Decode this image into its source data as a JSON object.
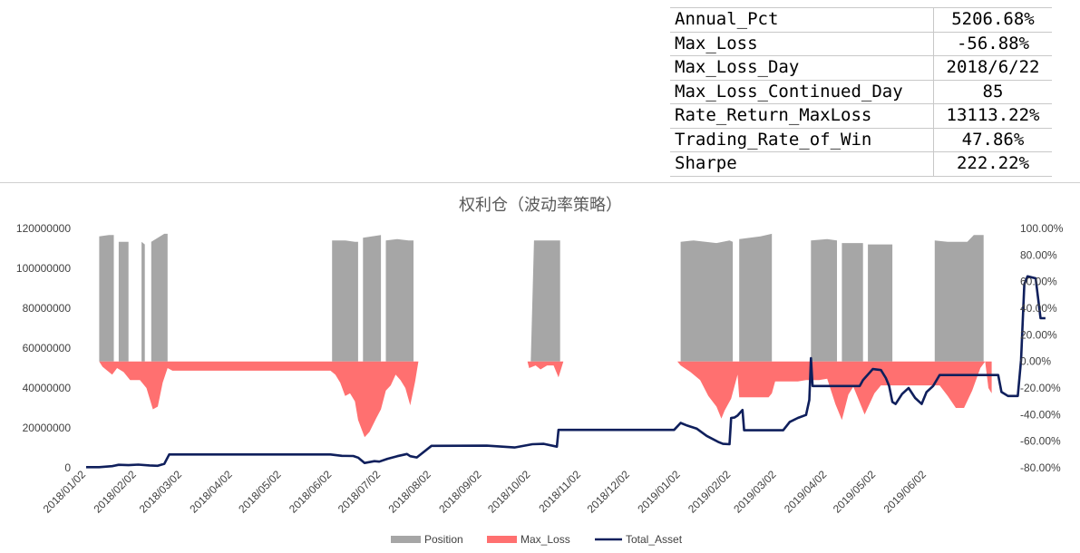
{
  "stats": [
    {
      "key": "Annual_Pct",
      "value": "5206.68%"
    },
    {
      "key": "Max_Loss",
      "value": "-56.88%"
    },
    {
      "key": "Max_Loss_Day",
      "value": "2018/6/22"
    },
    {
      "key": "Max_Loss_Continued_Day",
      "value": "85"
    },
    {
      "key": "Rate_Return_MaxLoss",
      "value": "13113.22%"
    },
    {
      "key": "Trading_Rate_of_Win",
      "value": "47.86%"
    },
    {
      "key": "Sharpe",
      "value": "222.22%"
    }
  ],
  "chart_data": {
    "type": "area",
    "title": "权利仓（波动率策略）",
    "x_axis": {
      "type": "date",
      "range": [
        "2018-01-02",
        "2019-07-20"
      ],
      "tick_labels": [
        "2018/01/02",
        "2018/02/02",
        "2018/03/02",
        "2018/04/02",
        "2018/05/02",
        "2018/06/02",
        "2018/07/02",
        "2018/08/02",
        "2018/09/02",
        "2018/10/02",
        "2018/11/02",
        "2018/12/02",
        "2019/01/02",
        "2019/02/02",
        "2019/03/02",
        "2019/04/02",
        "2019/05/02",
        "2019/06/02"
      ]
    },
    "y_left": {
      "range": [
        0,
        120000000
      ],
      "tick_labels": [
        "0",
        "20000000",
        "40000000",
        "60000000",
        "80000000",
        "100000000",
        "120000000"
      ]
    },
    "y_right": {
      "range": [
        -80,
        100
      ],
      "unit": "%",
      "tick_labels": [
        "-80.00%",
        "-60.00%",
        "-40.00%",
        "-20.00%",
        "0.00%",
        "20.00%",
        "40.00%",
        "60.00%",
        "80.00%",
        "100.00%"
      ]
    },
    "legend": {
      "position": "bottom",
      "entries": [
        "Position",
        "Max_Loss",
        "Total_Asset"
      ]
    },
    "colors": {
      "Position": "#a6a6a6",
      "Max_Loss": "#ff7070",
      "Total_Asset": "#0f1f5c"
    },
    "series": [
      {
        "name": "Position",
        "axis": "right",
        "kind": "area",
        "segments": [
          [
            [
              "2018-01-10",
              0
            ],
            [
              "2018-01-10",
              94
            ],
            [
              "2018-01-16",
              95
            ],
            [
              "2018-01-19",
              95
            ],
            [
              "2018-01-19",
              0
            ]
          ],
          [
            [
              "2018-01-22",
              0
            ],
            [
              "2018-01-22",
              90
            ],
            [
              "2018-01-28",
              90
            ],
            [
              "2018-01-28",
              0
            ]
          ],
          [
            [
              "2018-02-05",
              0
            ],
            [
              "2018-02-05",
              90
            ],
            [
              "2018-02-07",
              88
            ],
            [
              "2018-02-07",
              0
            ]
          ],
          [
            [
              "2018-02-11",
              0
            ],
            [
              "2018-02-11",
              90
            ],
            [
              "2018-02-19",
              96
            ],
            [
              "2018-02-21",
              96
            ],
            [
              "2018-02-21",
              0
            ]
          ],
          [
            [
              "2018-06-02",
              0
            ],
            [
              "2018-06-02",
              91
            ],
            [
              "2018-06-10",
              91
            ],
            [
              "2018-06-16",
              90
            ],
            [
              "2018-06-18",
              90
            ],
            [
              "2018-06-18",
              0
            ]
          ],
          [
            [
              "2018-06-21",
              0
            ],
            [
              "2018-06-21",
              93
            ],
            [
              "2018-07-02",
              95
            ],
            [
              "2018-07-02",
              0
            ]
          ],
          [
            [
              "2018-07-05",
              0
            ],
            [
              "2018-07-05",
              91
            ],
            [
              "2018-07-12",
              92
            ],
            [
              "2018-07-19",
              91
            ],
            [
              "2018-07-22",
              91
            ],
            [
              "2018-07-22",
              0
            ]
          ],
          [
            [
              "2018-10-02",
              0
            ],
            [
              "2018-10-04",
              91
            ],
            [
              "2018-10-20",
              91
            ],
            [
              "2018-10-20",
              0
            ]
          ],
          [
            [
              "2019-01-02",
              0
            ],
            [
              "2019-01-02",
              90
            ],
            [
              "2019-01-10",
              91
            ],
            [
              "2019-01-24",
              89
            ],
            [
              "2019-02-01",
              91
            ],
            [
              "2019-02-03",
              90
            ],
            [
              "2019-02-03",
              0
            ]
          ],
          [
            [
              "2019-02-07",
              0
            ],
            [
              "2019-02-07",
              92
            ],
            [
              "2019-02-20",
              94
            ],
            [
              "2019-02-27",
              96
            ],
            [
              "2019-02-27",
              0
            ]
          ],
          [
            [
              "2019-03-23",
              0
            ],
            [
              "2019-03-23",
              91
            ],
            [
              "2019-04-02",
              92
            ],
            [
              "2019-04-08",
              91
            ],
            [
              "2019-04-08",
              0
            ]
          ],
          [
            [
              "2019-04-11",
              0
            ],
            [
              "2019-04-11",
              89
            ],
            [
              "2019-04-24",
              89
            ],
            [
              "2019-04-24",
              0
            ]
          ],
          [
            [
              "2019-04-27",
              0
            ],
            [
              "2019-04-27",
              88
            ],
            [
              "2019-05-12",
              88
            ],
            [
              "2019-05-12",
              0
            ]
          ],
          [
            [
              "2019-06-07",
              0
            ],
            [
              "2019-06-07",
              91
            ],
            [
              "2019-06-15",
              90
            ],
            [
              "2019-06-27",
              90
            ],
            [
              "2019-07-01",
              95
            ],
            [
              "2019-07-07",
              95
            ],
            [
              "2019-07-07",
              0
            ]
          ]
        ]
      },
      {
        "name": "Max_Loss",
        "axis": "right",
        "kind": "area",
        "points": [
          [
            "2018-01-10",
            0
          ],
          [
            "2018-01-12",
            -4
          ],
          [
            "2018-01-15",
            -7
          ],
          [
            "2018-01-18",
            -10
          ],
          [
            "2018-01-21",
            -5
          ],
          [
            "2018-01-25",
            -8
          ],
          [
            "2018-01-29",
            -14
          ],
          [
            "2018-02-04",
            -14
          ],
          [
            "2018-02-08",
            -20
          ],
          [
            "2018-02-12",
            -36
          ],
          [
            "2018-02-15",
            -34
          ],
          [
            "2018-02-18",
            -16
          ],
          [
            "2018-02-21",
            -5
          ],
          [
            "2018-02-24",
            -7
          ],
          [
            "2018-06-01",
            -7
          ],
          [
            "2018-06-04",
            -10
          ],
          [
            "2018-06-07",
            -16
          ],
          [
            "2018-06-10",
            -26
          ],
          [
            "2018-06-13",
            -24
          ],
          [
            "2018-06-16",
            -30
          ],
          [
            "2018-06-18",
            -44
          ],
          [
            "2018-06-22",
            -57
          ],
          [
            "2018-06-25",
            -53
          ],
          [
            "2018-06-29",
            -43
          ],
          [
            "2018-07-02",
            -36
          ],
          [
            "2018-07-05",
            -22
          ],
          [
            "2018-07-08",
            -18
          ],
          [
            "2018-07-11",
            -10
          ],
          [
            "2018-07-14",
            -14
          ],
          [
            "2018-07-17",
            -20
          ],
          [
            "2018-07-20",
            -33
          ],
          [
            "2018-07-23",
            -15
          ],
          [
            "2018-07-25",
            0
          ],
          [
            "2018-09-30",
            0
          ],
          [
            "2018-10-01",
            -5
          ],
          [
            "2018-10-05",
            -3
          ],
          [
            "2018-10-08",
            -6
          ],
          [
            "2018-10-12",
            -3
          ],
          [
            "2018-10-16",
            -3
          ],
          [
            "2018-10-19",
            -12
          ],
          [
            "2018-10-22",
            0
          ],
          [
            "2018-12-31",
            0
          ],
          [
            "2019-01-02",
            -3
          ],
          [
            "2019-01-08",
            -8
          ],
          [
            "2019-01-14",
            -14
          ],
          [
            "2019-01-19",
            -26
          ],
          [
            "2019-01-24",
            -34
          ],
          [
            "2019-01-27",
            -43
          ],
          [
            "2019-01-29",
            -37
          ],
          [
            "2019-02-02",
            -28
          ],
          [
            "2019-02-06",
            -10
          ],
          [
            "2019-02-07",
            -27
          ],
          [
            "2019-02-25",
            -27
          ],
          [
            "2019-02-27",
            -24
          ],
          [
            "2019-03-01",
            -15
          ],
          [
            "2019-03-15",
            -15
          ],
          [
            "2019-03-20",
            -14
          ],
          [
            "2019-03-28",
            -14
          ],
          [
            "2019-04-02",
            -13
          ],
          [
            "2019-04-07",
            -32
          ],
          [
            "2019-04-11",
            -44
          ],
          [
            "2019-04-15",
            -25
          ],
          [
            "2019-04-18",
            -19
          ],
          [
            "2019-04-25",
            -40
          ],
          [
            "2019-05-01",
            -24
          ],
          [
            "2019-05-05",
            -18
          ],
          [
            "2019-06-10",
            -18
          ],
          [
            "2019-06-15",
            -26
          ],
          [
            "2019-06-20",
            -35
          ],
          [
            "2019-06-25",
            -35
          ],
          [
            "2019-06-30",
            -22
          ],
          [
            "2019-07-05",
            -5
          ],
          [
            "2019-07-08",
            0
          ],
          [
            "2019-07-10",
            -20
          ],
          [
            "2019-07-12",
            -24
          ],
          [
            "2019-07-12",
            0
          ]
        ]
      },
      {
        "name": "Total_Asset",
        "axis": "left",
        "kind": "line",
        "points": [
          [
            "2018-01-02",
            300000
          ],
          [
            "2018-01-10",
            300000
          ],
          [
            "2018-01-18",
            800000
          ],
          [
            "2018-01-22",
            1500000
          ],
          [
            "2018-01-28",
            1300000
          ],
          [
            "2018-02-03",
            1600000
          ],
          [
            "2018-02-10",
            1200000
          ],
          [
            "2018-02-15",
            1000000
          ],
          [
            "2018-02-19",
            2000000
          ],
          [
            "2018-02-22",
            6700000
          ],
          [
            "2018-06-01",
            6700000
          ],
          [
            "2018-06-08",
            6000000
          ],
          [
            "2018-06-15",
            5900000
          ],
          [
            "2018-06-18",
            5100000
          ],
          [
            "2018-06-22",
            2400000
          ],
          [
            "2018-06-28",
            3300000
          ],
          [
            "2018-07-01",
            3100000
          ],
          [
            "2018-07-06",
            4500000
          ],
          [
            "2018-07-12",
            5800000
          ],
          [
            "2018-07-18",
            6900000
          ],
          [
            "2018-07-20",
            5800000
          ],
          [
            "2018-07-24",
            5200000
          ],
          [
            "2018-08-02",
            11000000
          ],
          [
            "2018-09-05",
            11100000
          ],
          [
            "2018-09-22",
            10200000
          ],
          [
            "2018-10-03",
            11800000
          ],
          [
            "2018-10-10",
            12000000
          ],
          [
            "2018-10-18",
            10600000
          ],
          [
            "2018-10-19",
            19000000
          ],
          [
            "2018-12-29",
            19000000
          ],
          [
            "2019-01-02",
            22500000
          ],
          [
            "2019-01-06",
            21200000
          ],
          [
            "2019-01-12",
            19600000
          ],
          [
            "2019-01-18",
            16000000
          ],
          [
            "2019-01-25",
            13000000
          ],
          [
            "2019-01-28",
            12000000
          ],
          [
            "2019-02-01",
            11800000
          ],
          [
            "2019-02-02",
            25000000
          ],
          [
            "2019-02-04",
            25200000
          ],
          [
            "2019-02-06",
            26200000
          ],
          [
            "2019-02-09",
            29000000
          ],
          [
            "2019-02-10",
            18800000
          ],
          [
            "2019-03-06",
            18800000
          ],
          [
            "2019-03-10",
            23000000
          ],
          [
            "2019-03-15",
            25000000
          ],
          [
            "2019-03-20",
            26500000
          ],
          [
            "2019-03-22",
            34000000
          ],
          [
            "2019-03-23",
            55000000
          ],
          [
            "2019-03-24",
            41000000
          ],
          [
            "2019-04-22",
            41000000
          ],
          [
            "2019-04-24",
            44000000
          ],
          [
            "2019-04-30",
            49500000
          ],
          [
            "2019-05-05",
            49000000
          ],
          [
            "2019-05-08",
            45000000
          ],
          [
            "2019-05-10",
            41000000
          ],
          [
            "2019-05-12",
            33000000
          ],
          [
            "2019-05-14",
            32000000
          ],
          [
            "2019-05-18",
            37000000
          ],
          [
            "2019-05-22",
            40000000
          ],
          [
            "2019-05-26",
            35000000
          ],
          [
            "2019-05-30",
            32000000
          ],
          [
            "2019-06-02",
            38000000
          ],
          [
            "2019-06-06",
            41000000
          ],
          [
            "2019-06-10",
            46500000
          ],
          [
            "2019-07-16",
            46500000
          ],
          [
            "2019-07-18",
            38000000
          ],
          [
            "2019-07-22",
            36000000
          ],
          [
            "2019-07-28",
            36000000
          ],
          [
            "2019-07-30",
            54000000
          ],
          [
            "2019-08-01",
            92000000
          ],
          [
            "2019-08-03",
            96000000
          ],
          [
            "2019-08-08",
            95000000
          ],
          [
            "2019-08-11",
            75000000
          ],
          [
            "2019-08-14",
            75000000
          ]
        ]
      }
    ]
  }
}
